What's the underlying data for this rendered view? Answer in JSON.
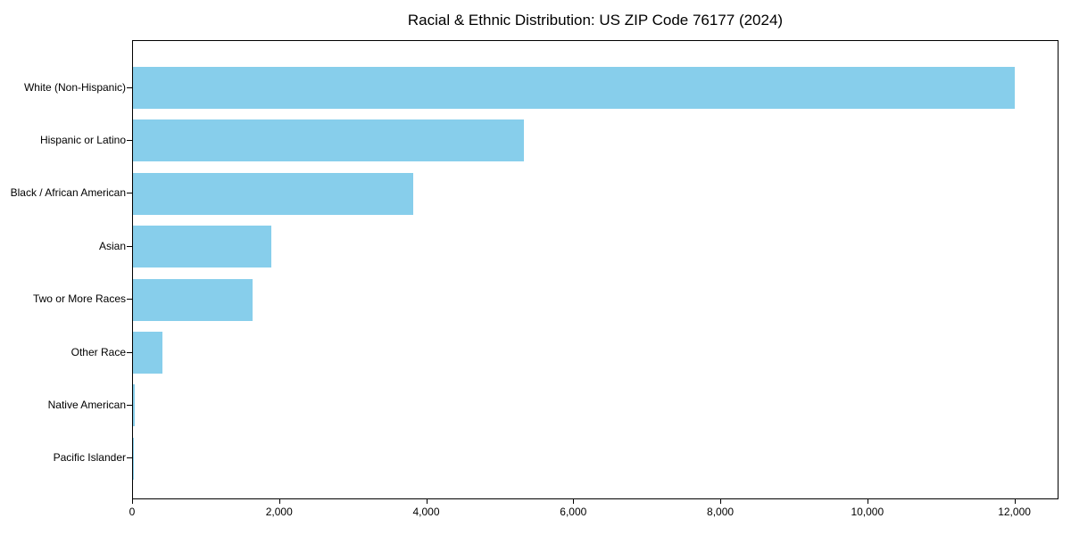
{
  "figure": {
    "title": "Racial & Ethnic Distribution: US ZIP Code 76177 (2024)"
  },
  "chart_data": {
    "type": "bar",
    "orientation": "horizontal",
    "title": "Racial & Ethnic Distribution: US ZIP Code 76177 (2024)",
    "categories": [
      "White (Non-Hispanic)",
      "Hispanic or Latino",
      "Black / African American",
      "Asian",
      "Two or More Races",
      "Other Race",
      "Native American",
      "Pacific Islander"
    ],
    "values": [
      11990,
      5320,
      3810,
      1880,
      1630,
      400,
      30,
      10
    ],
    "xlabel": "",
    "ylabel": "",
    "xlim": [
      0,
      12600
    ],
    "xticks": [
      0,
      2000,
      4000,
      6000,
      8000,
      10000,
      12000
    ],
    "xtick_labels": [
      "0",
      "2,000",
      "4,000",
      "6,000",
      "8,000",
      "10,000",
      "12,000"
    ],
    "bar_color": "#87CEEB",
    "text_color": "#000000",
    "spine_color": "#000000",
    "grid": false,
    "legend": null
  }
}
